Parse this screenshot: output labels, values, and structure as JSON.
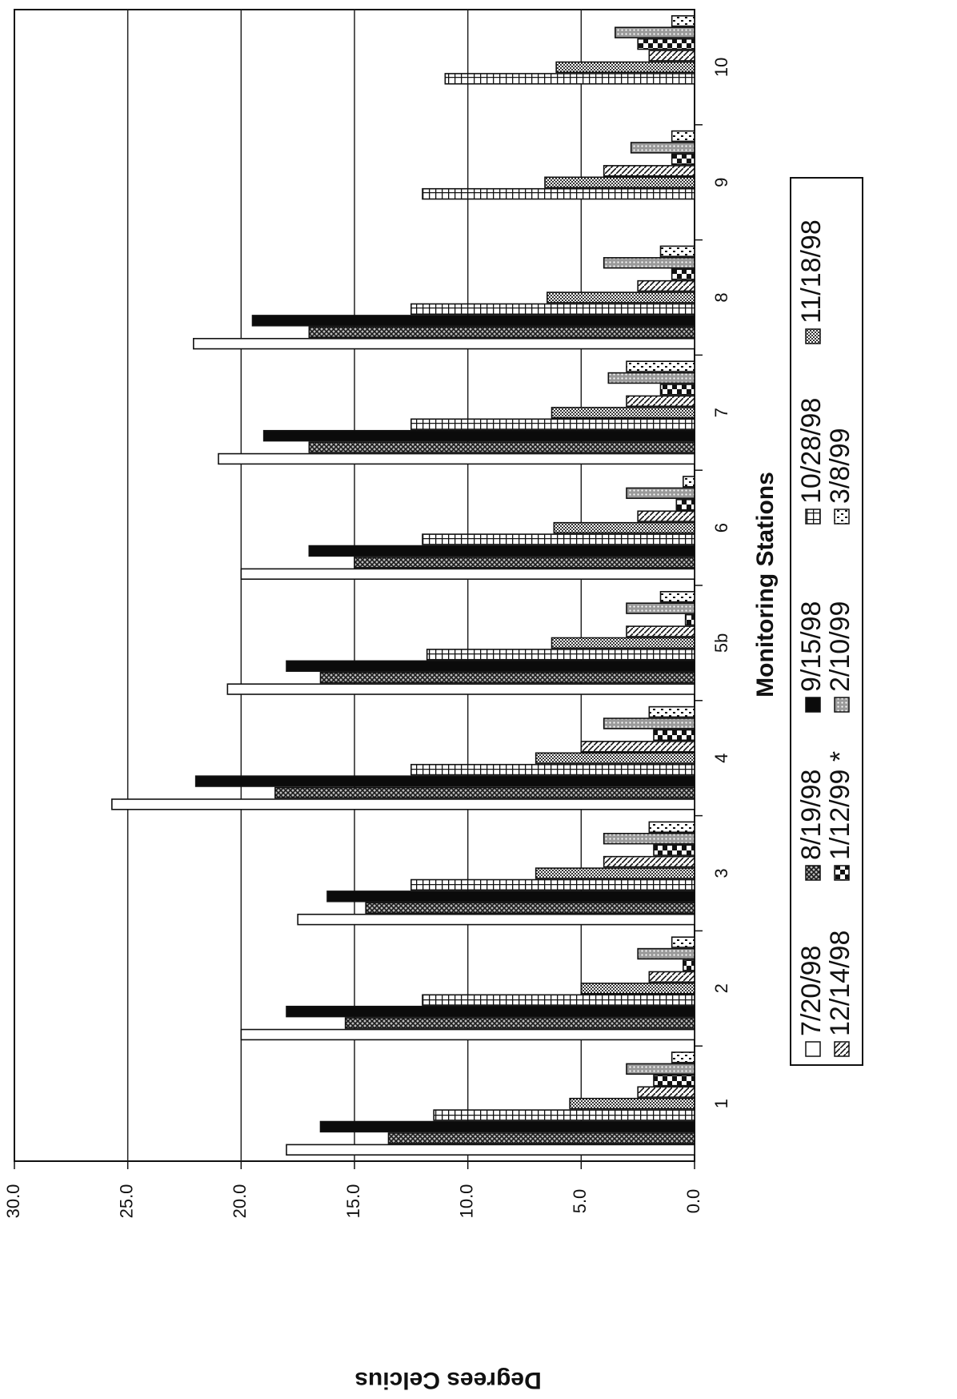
{
  "chart_data": {
    "type": "bar",
    "orientation": "horizontal",
    "title": "",
    "xlabel": "Monitoring Stations",
    "ylabel": "Degrees Celcius",
    "ylim": [
      0,
      30
    ],
    "yticks": [
      "0.0",
      "5.0",
      "10.0",
      "15.0",
      "20.0",
      "25.0",
      "30.0"
    ],
    "grid": true,
    "legend_position": "bottom",
    "categories": [
      "1",
      "2",
      "3",
      "4",
      "5b",
      "6",
      "7",
      "8",
      "9",
      "10"
    ],
    "series": [
      {
        "name": "7/20/98",
        "pattern": "white",
        "values": [
          18.0,
          20.0,
          17.5,
          25.7,
          20.6,
          20.0,
          21.0,
          22.1,
          null,
          null
        ]
      },
      {
        "name": "8/19/98",
        "pattern": "crosshatch",
        "values": [
          13.5,
          15.4,
          14.5,
          18.5,
          16.5,
          15.0,
          17.0,
          17.0,
          null,
          null
        ]
      },
      {
        "name": "9/15/98",
        "pattern": "solid",
        "values": [
          16.5,
          18.0,
          16.2,
          22.0,
          18.0,
          17.0,
          19.0,
          19.5,
          null,
          null
        ]
      },
      {
        "name": "10/28/98",
        "pattern": "grid",
        "values": [
          11.5,
          12.0,
          12.5,
          12.5,
          11.8,
          12.0,
          12.5,
          12.5,
          12.0,
          11.0
        ]
      },
      {
        "name": "11/18/98",
        "pattern": "fine-dots",
        "values": [
          5.5,
          5.0,
          7.0,
          7.0,
          6.3,
          6.2,
          6.3,
          6.5,
          6.6,
          6.1
        ]
      },
      {
        "name": "12/14/98",
        "pattern": "diagonal",
        "values": [
          2.5,
          2.0,
          4.0,
          5.0,
          3.0,
          2.5,
          3.0,
          2.5,
          4.0,
          2.0
        ]
      },
      {
        "name": "1/12/99 *",
        "pattern": "checker",
        "values": [
          1.8,
          0.5,
          1.8,
          1.8,
          0.4,
          0.8,
          1.5,
          1.0,
          1.0,
          2.5
        ]
      },
      {
        "name": "2/10/99",
        "pattern": "dots",
        "values": [
          3.0,
          2.5,
          4.0,
          4.0,
          3.0,
          3.0,
          3.8,
          4.0,
          2.8,
          3.5
        ]
      },
      {
        "name": "3/8/99",
        "pattern": "dashes",
        "values": [
          1.0,
          1.0,
          2.0,
          2.0,
          1.5,
          0.5,
          3.0,
          1.5,
          1.0,
          1.0
        ]
      }
    ]
  }
}
